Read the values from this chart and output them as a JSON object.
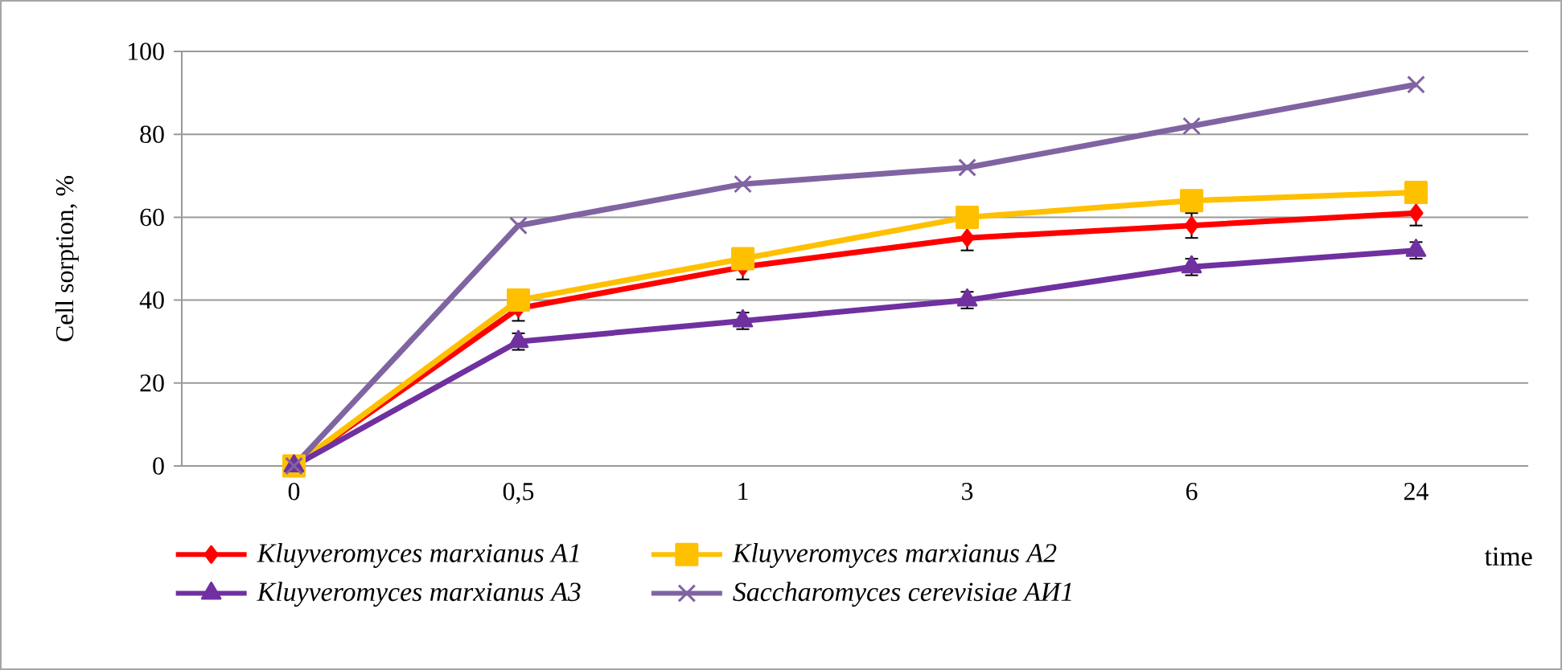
{
  "chart_data": {
    "type": "line",
    "ylabel": "Cell sorption, %",
    "xlabel": "time",
    "categories": [
      "0",
      "0,5",
      "1",
      "3",
      "6",
      "24"
    ],
    "ylim": [
      0,
      100
    ],
    "yticks": [
      0,
      20,
      40,
      60,
      80,
      100
    ],
    "grid": "y",
    "legend": "bottom",
    "series": [
      {
        "name": "Kluyveromyces marxianus A1",
        "color": "#ff0000",
        "marker": "diamond",
        "values": [
          0,
          38,
          48,
          55,
          58,
          61
        ],
        "errors": [
          null,
          3,
          3,
          3,
          3,
          3
        ]
      },
      {
        "name": "Kluyveromyces marxianus A2",
        "color": "#ffc000",
        "marker": "square",
        "values": [
          0,
          40,
          50,
          60,
          64,
          66
        ]
      },
      {
        "name": "Kluyveromyces marxianus A3",
        "color": "#7030a0",
        "marker": "triangle",
        "values": [
          0,
          30,
          35,
          40,
          48,
          52
        ],
        "errors": [
          null,
          2,
          2,
          2,
          2,
          2
        ]
      },
      {
        "name": "Saccharomyces cerevisiae АИ1",
        "color": "#8064a2",
        "marker": "cross",
        "values": [
          0,
          58,
          68,
          72,
          82,
          92
        ]
      }
    ]
  }
}
